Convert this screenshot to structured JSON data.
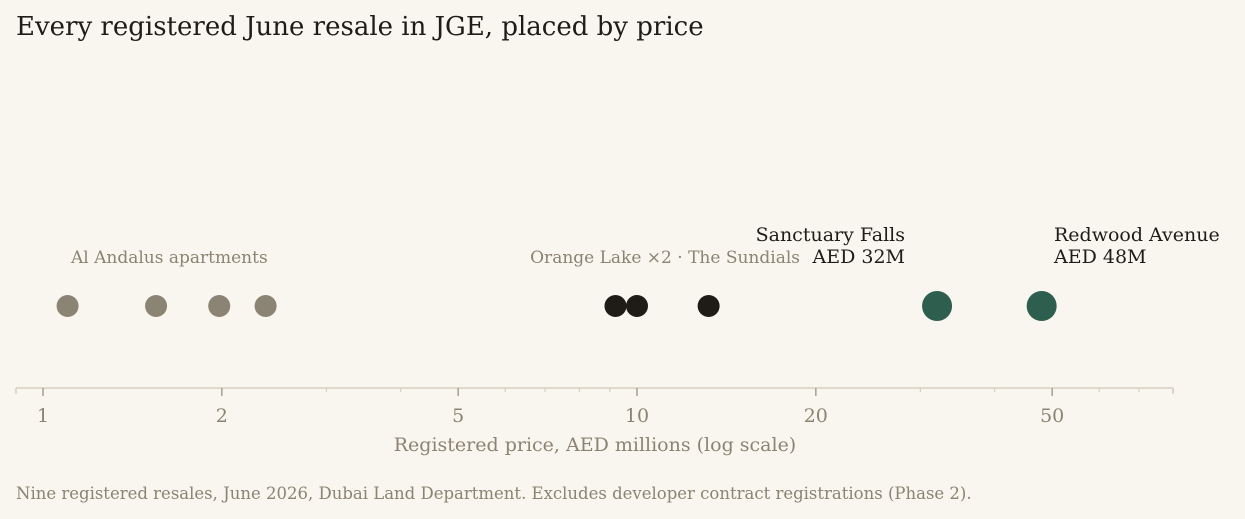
{
  "title": "Every registered June resale in JGE, placed by price",
  "footnote": "Nine registered resales, June 2026, Dubai Land Department. Excludes developer contract registrations (Phase 2).",
  "chart_data": {
    "type": "scatter",
    "title": "Every registered June resale in JGE, placed by price",
    "xlabel": "Registered price, AED millions (log scale)",
    "ylabel": "",
    "x_scale": "log",
    "xlim": [
      0.9,
      80
    ],
    "major_ticks": [
      1,
      2,
      5,
      10,
      20,
      50
    ],
    "major_tick_labels": [
      "1",
      "2",
      "5",
      "10",
      "20",
      "50"
    ],
    "minor_ticks": [
      3,
      4,
      6,
      7,
      8,
      9,
      30,
      40,
      60,
      70,
      80
    ],
    "grid": false,
    "points": [
      {
        "x": 1.1,
        "group": "al-andalus"
      },
      {
        "x": 1.55,
        "group": "al-andalus"
      },
      {
        "x": 1.98,
        "group": "al-andalus"
      },
      {
        "x": 2.37,
        "group": "al-andalus"
      },
      {
        "x": 9.2,
        "group": "mid"
      },
      {
        "x": 10.0,
        "group": "mid"
      },
      {
        "x": 13.2,
        "group": "mid"
      },
      {
        "x": 32,
        "group": "top"
      },
      {
        "x": 48,
        "group": "top"
      }
    ],
    "colors": {
      "al-andalus": "#8b8373",
      "mid": "#1f1c18",
      "top": "#2e5e4e",
      "axis": "#d8cfc0"
    },
    "annotations": [
      {
        "id": "al-andalus",
        "text": "Al Andalus apartments"
      },
      {
        "id": "orange-lake",
        "text": "Orange Lake ×2 · The Sundials"
      },
      {
        "id": "sanctuary",
        "lines": [
          "Sanctuary Falls",
          "AED 32M"
        ]
      },
      {
        "id": "redwood",
        "lines": [
          "Redwood Avenue",
          "AED 48M"
        ]
      }
    ]
  }
}
